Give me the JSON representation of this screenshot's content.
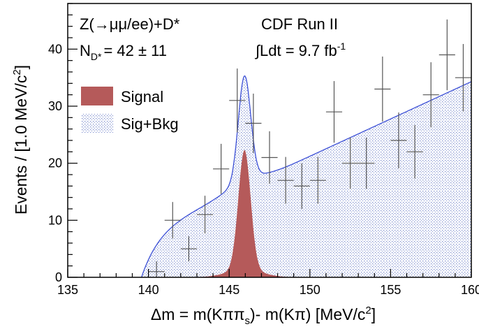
{
  "chart_data": {
    "type": "histogram",
    "title": "",
    "experiment_label": "CDF Run II",
    "process_label": "Z(→μμ/ee)+D*",
    "yield_label": "N",
    "yield_sub": "D*",
    "yield_value": "= 42 ± 11",
    "lumi_label": "∫Ldt = 9.7 fb",
    "lumi_sup": "-1",
    "xlabel_main": "Δm = m(Kππ",
    "xlabel_sub": "s",
    "xlabel_rest": ")- m(Kπ) [MeV/c",
    "xlabel_sup": "2",
    "xlabel_end": "]",
    "ylabel_main": "Events / [1.0 MeV/c",
    "ylabel_sup": "2",
    "ylabel_end": "]",
    "xlim": [
      135,
      160
    ],
    "ylim": [
      0,
      48
    ],
    "xticks": [
      135,
      140,
      145,
      150,
      155,
      160
    ],
    "yticks": [
      0,
      10,
      20,
      30,
      40
    ],
    "legend": [
      {
        "name": "Signal",
        "color": "#b55a5a"
      },
      {
        "name": "Sig+Bkg",
        "color": "#c4cde8"
      }
    ],
    "data_points": [
      {
        "x": 140.5,
        "y": 1,
        "err_low": 1,
        "err_high": 1.8
      },
      {
        "x": 141.5,
        "y": 10,
        "err_low": 3.2,
        "err_high": 3.2
      },
      {
        "x": 142.5,
        "y": 5,
        "err_low": 2.2,
        "err_high": 2.2
      },
      {
        "x": 143.5,
        "y": 11,
        "err_low": 3.3,
        "err_high": 3.3
      },
      {
        "x": 144.5,
        "y": 19,
        "err_low": 4.4,
        "err_high": 4.4
      },
      {
        "x": 145.5,
        "y": 31,
        "err_low": 5.6,
        "err_high": 5.6
      },
      {
        "x": 146.5,
        "y": 27,
        "err_low": 5.2,
        "err_high": 5.2
      },
      {
        "x": 147.5,
        "y": 21,
        "err_low": 4.6,
        "err_high": 4.6
      },
      {
        "x": 148.5,
        "y": 17,
        "err_low": 4.1,
        "err_high": 4.1
      },
      {
        "x": 149.5,
        "y": 16,
        "err_low": 4,
        "err_high": 4
      },
      {
        "x": 150.5,
        "y": 17,
        "err_low": 4.1,
        "err_high": 4.1
      },
      {
        "x": 151.5,
        "y": 29,
        "err_low": 5.4,
        "err_high": 5.4
      },
      {
        "x": 152.5,
        "y": 20,
        "err_low": 4.5,
        "err_high": 4.5
      },
      {
        "x": 153.5,
        "y": 20,
        "err_low": 4.5,
        "err_high": 4.5
      },
      {
        "x": 154.5,
        "y": 33,
        "err_low": 5.7,
        "err_high": 5.7
      },
      {
        "x": 155.5,
        "y": 24,
        "err_low": 4.9,
        "err_high": 4.9
      },
      {
        "x": 156.5,
        "y": 22,
        "err_low": 4.7,
        "err_high": 4.7
      },
      {
        "x": 157.5,
        "y": 32,
        "err_low": 5.7,
        "err_high": 5.7
      },
      {
        "x": 158.5,
        "y": 39,
        "err_low": 6.2,
        "err_high": 6.2
      },
      {
        "x": 159.5,
        "y": 35,
        "err_low": 5.9,
        "err_high": 5.9
      }
    ],
    "signal_model": {
      "peak_x": 145.95,
      "peak_y": 22.3,
      "core_sigma": 0.38,
      "tail_sigma": 1.1,
      "tail_fraction": 0.06,
      "color": "#b55a5a"
    },
    "total_model": {
      "threshold_x": 139.57,
      "background_y_at_147": 17.3,
      "background_y_at_160": 34.3,
      "peak_total_y": 35.3,
      "line_color": "#3b4fd6",
      "fill_color": "#c4cde8"
    }
  }
}
